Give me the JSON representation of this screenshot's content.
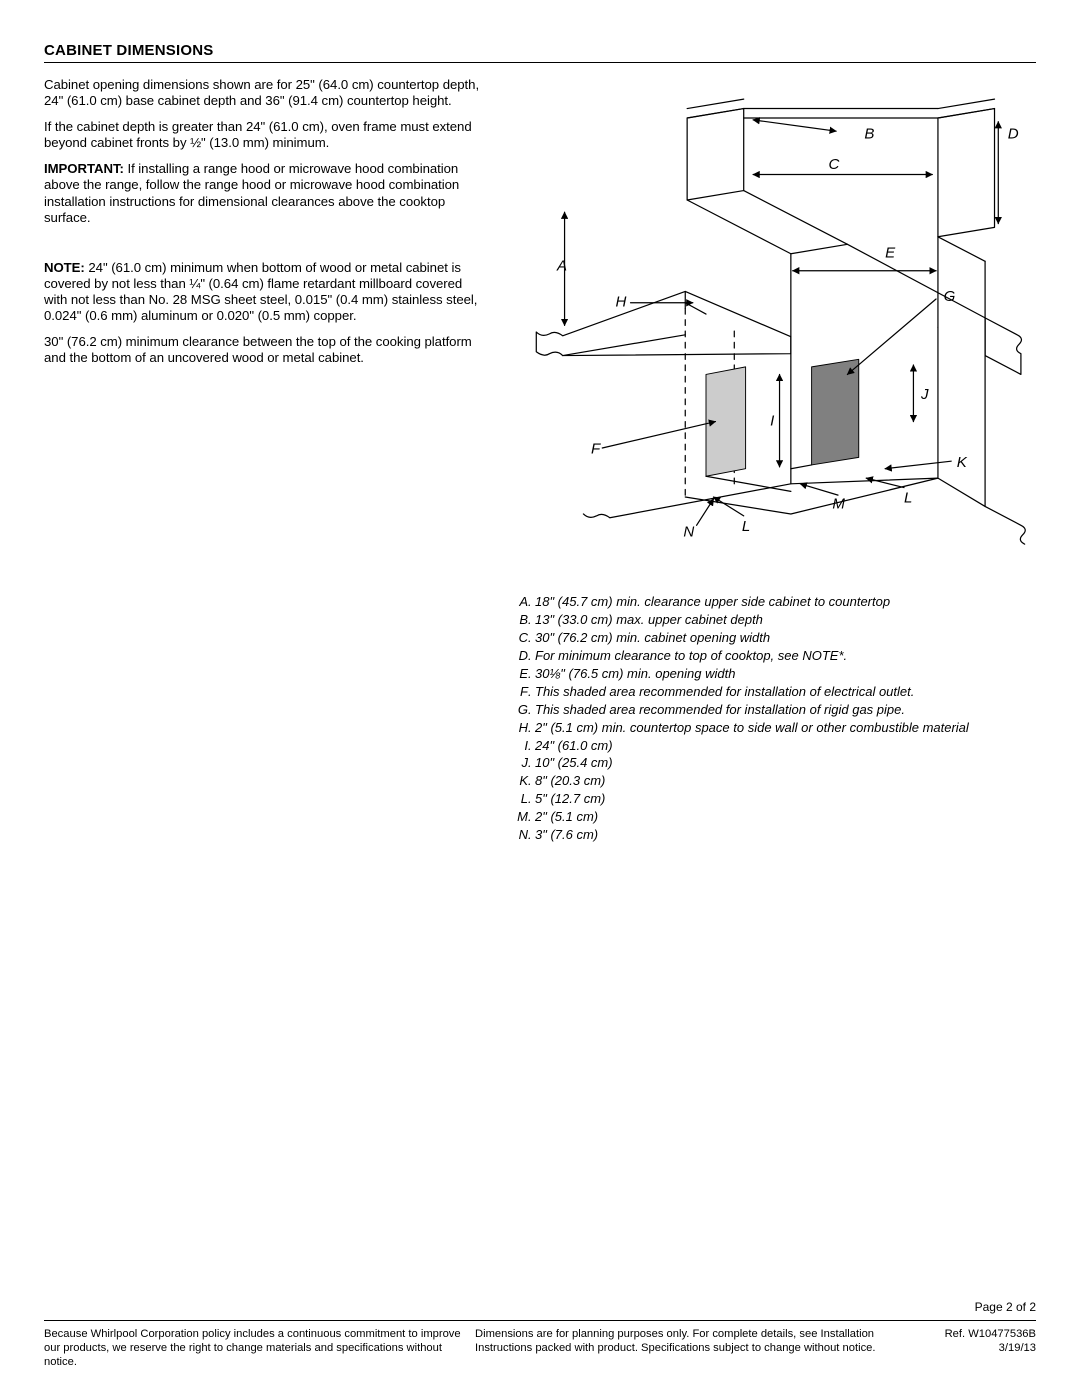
{
  "header": "CABINET DIMENSIONS",
  "paragraphs": {
    "p1": "Cabinet opening dimensions shown are for 25\" (64.0 cm) countertop depth, 24\" (61.0 cm) base cabinet depth and 36\" (91.4 cm) countertop height.",
    "p2": "If the cabinet depth is greater than 24\" (61.0 cm), oven frame must extend beyond cabinet fronts by ½\" (13.0 mm) minimum.",
    "p3_bold": "IMPORTANT:",
    "p3_rest": " If installing a range hood or microwave hood combination above the range, follow the range hood or microwave hood combination installation instructions for dimensional clearances above the cooktop surface.",
    "p4_bold": "NOTE:",
    "p4_rest": " 24\" (61.0 cm) minimum when bottom of wood or metal cabinet is covered by not less than ¼\" (0.64 cm) flame retardant millboard covered with not less than No. 28 MSG sheet steel, 0.015\" (0.4 mm) stainless steel, 0.024\" (0.6 mm) aluminum or 0.020\" (0.5 mm) copper.",
    "p5": "30\" (76.2 cm) minimum clearance between the top of the cooking platform and the bottom of an uncovered wood or metal cabinet."
  },
  "diagram": {
    "labels": [
      "A",
      "B",
      "C",
      "D",
      "E",
      "F",
      "G",
      "H",
      "I",
      "J",
      "K",
      "L",
      "M",
      "N"
    ],
    "stroke": "#000000",
    "stroke_width": 1.2,
    "fill_light": "#cccccc",
    "fill_dark": "#808080",
    "bg": "#ffffff"
  },
  "legend": [
    {
      "k": "A",
      "t": "18\" (45.7 cm) min. clearance upper side cabinet to countertop"
    },
    {
      "k": "B",
      "t": "13\" (33.0 cm) max. upper cabinet depth"
    },
    {
      "k": "C",
      "t": "30\" (76.2 cm) min. cabinet opening width"
    },
    {
      "k": "D",
      "t": "For minimum clearance to top of cooktop, see NOTE*."
    },
    {
      "k": "E",
      "t": "30⅛\" (76.5 cm) min. opening width"
    },
    {
      "k": "F",
      "t": "This shaded area recommended for installation of electrical outlet."
    },
    {
      "k": "G",
      "t": "This shaded area recommended for installation of rigid gas pipe."
    },
    {
      "k": "H",
      "t": "2\" (5.1 cm) min. countertop space to side wall or other combustible material"
    },
    {
      "k": "I",
      "t": "24\" (61.0 cm)"
    },
    {
      "k": "J",
      "t": "10\" (25.4 cm)"
    },
    {
      "k": "K",
      "t": "8\" (20.3 cm)"
    },
    {
      "k": "L",
      "t": "5\" (12.7 cm)"
    },
    {
      "k": "M",
      "t": "2\" (5.1 cm)"
    },
    {
      "k": "N",
      "t": "3\" (7.6 cm)"
    }
  ],
  "footer": {
    "page": "Page 2 of 2",
    "c1": "Because Whirlpool Corporation policy includes a continuous commitment to improve our products, we reserve the right to change materials and specifications without notice.",
    "c2": "Dimensions are for planning purposes only. For complete details, see Installation Instructions packed with product. Specifications subject to change without notice.",
    "ref": "Ref. W10477536B",
    "date": "3/19/13"
  }
}
